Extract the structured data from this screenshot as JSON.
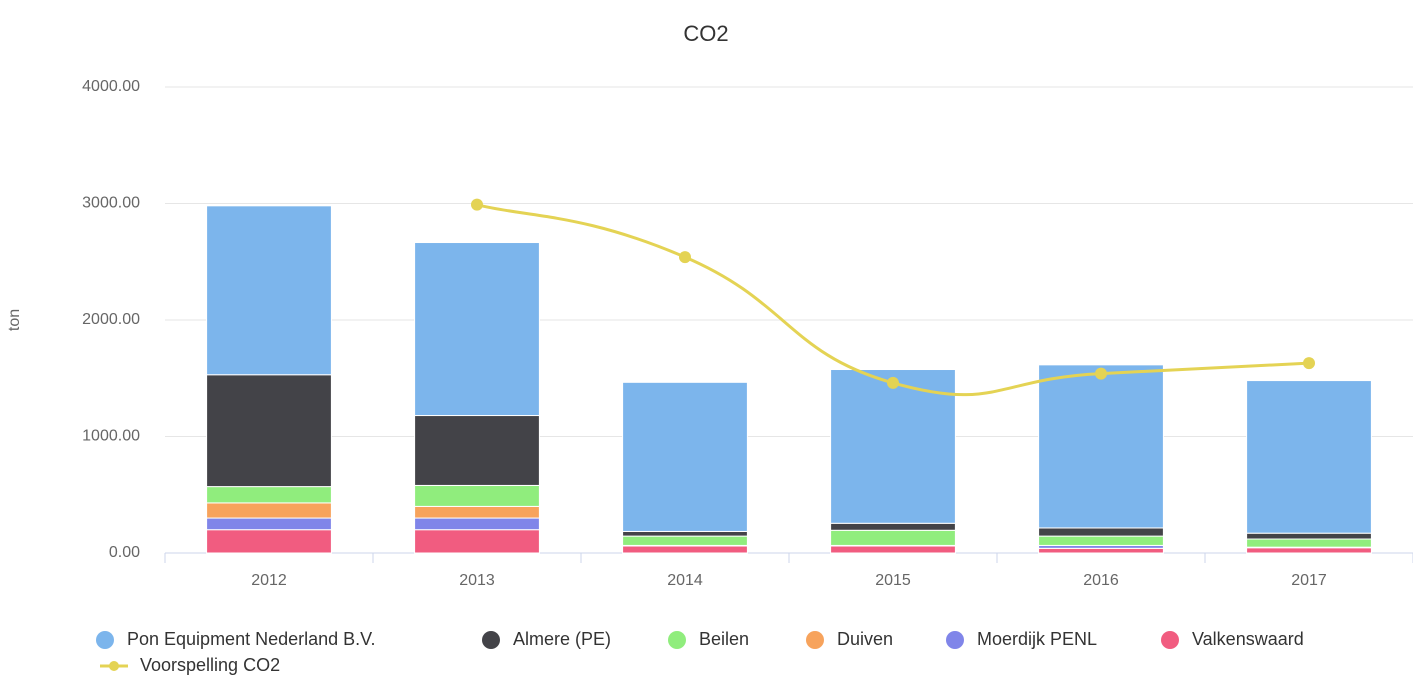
{
  "chart_data": {
    "type": "stacked_bar_line",
    "title": "CO2",
    "y_axis_label": "ton",
    "categories": [
      "2012",
      "2013",
      "2014",
      "2015",
      "2016",
      "2017"
    ],
    "series": [
      {
        "name": "Pon Equipment Nederland B.V.",
        "color": "#7cb5ec",
        "kind": "bar",
        "values": [
          1450,
          1485,
          1280,
          1320,
          1400,
          1310
        ]
      },
      {
        "name": "Almere (PE)",
        "color": "#434348",
        "kind": "bar",
        "values": [
          960,
          600,
          40,
          60,
          70,
          50
        ]
      },
      {
        "name": "Beilen",
        "color": "#90ed7d",
        "kind": "bar",
        "values": [
          140,
          180,
          80,
          130,
          80,
          70
        ]
      },
      {
        "name": "Duiven",
        "color": "#f7a35c",
        "kind": "bar",
        "values": [
          130,
          100,
          0,
          0,
          0,
          0
        ]
      },
      {
        "name": "Moerdijk PENL",
        "color": "#8085e9",
        "kind": "bar",
        "values": [
          100,
          100,
          5,
          5,
          25,
          5
        ]
      },
      {
        "name": "Valkenswaard",
        "color": "#f15c80",
        "kind": "bar",
        "values": [
          200,
          200,
          60,
          60,
          40,
          45
        ]
      },
      {
        "name": "Voorspelling CO2",
        "color": "#e4d354",
        "kind": "spline",
        "values": [
          null,
          2990,
          2540,
          1460,
          1540,
          1630
        ]
      }
    ],
    "ylim": [
      0,
      4000
    ],
    "yticks": [
      {
        "value": 0,
        "label": "0.00"
      },
      {
        "value": 1000,
        "label": "1000.00"
      },
      {
        "value": 2000,
        "label": "2000.00"
      },
      {
        "value": 3000,
        "label": "3000.00"
      },
      {
        "value": 4000,
        "label": "4000.00"
      }
    ],
    "grid": true,
    "legend": "bottom"
  }
}
